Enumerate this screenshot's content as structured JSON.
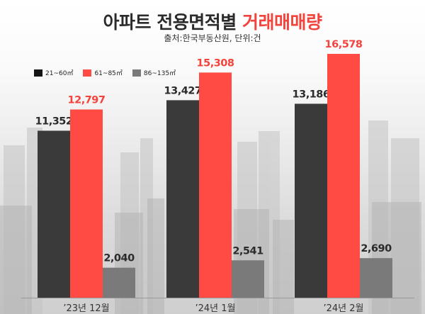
{
  "title": {
    "main": "아파트 전용면적별",
    "accent": "거래매매량",
    "subtitle": "출처:한국부동산원, 단위:건"
  },
  "colors": {
    "series1": "#3a3a3a",
    "series2": "#ff4b43",
    "series3": "#7a7a7a",
    "label_highlight": "#f2433c",
    "label_default": "#2b2b2b"
  },
  "chart_data": {
    "type": "bar",
    "categories": [
      "’23년 12월",
      "’24년 1월",
      "’24년 2월"
    ],
    "series": [
      {
        "name": "21~60㎡",
        "values": [
          11352,
          13427,
          13186
        ],
        "labels": [
          "11,352",
          "13,427",
          "13,186"
        ]
      },
      {
        "name": "61~85㎡",
        "values": [
          12797,
          15308,
          16578
        ],
        "labels": [
          "12,797",
          "15,308",
          "16,578"
        ]
      },
      {
        "name": "86~135㎡",
        "values": [
          2040,
          2541,
          2690
        ],
        "labels": [
          "2,040",
          "2,541",
          "2,690"
        ]
      }
    ],
    "ylim": [
      0,
      18000
    ],
    "grid": false,
    "legend_position": "top-left",
    "xlabel": "",
    "ylabel": ""
  }
}
